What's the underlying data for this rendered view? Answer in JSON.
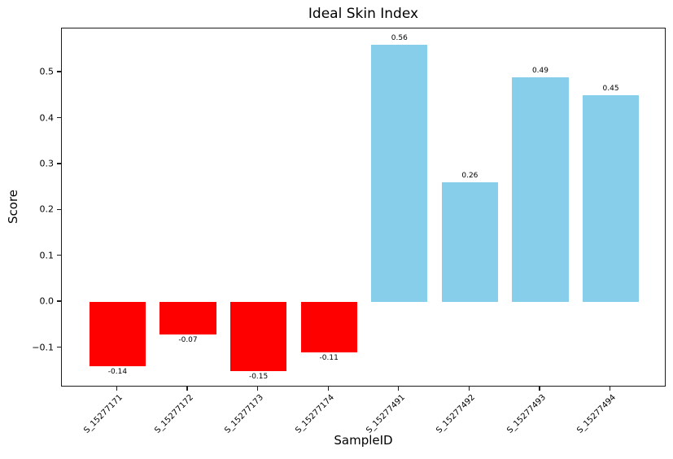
{
  "chart_data": {
    "type": "bar",
    "title": "Ideal Skin Index",
    "xlabel": "SampleID",
    "ylabel": "Score",
    "categories": [
      "S_15277171",
      "S_15277172",
      "S_15277173",
      "S_15277174",
      "S_15277491",
      "S_15277492",
      "S_15277493",
      "S_15277494"
    ],
    "values": [
      -0.14,
      -0.07,
      -0.15,
      -0.11,
      0.56,
      0.26,
      0.49,
      0.45
    ],
    "value_labels": [
      "-0.14",
      "-0.07",
      "-0.15",
      "-0.11",
      "0.56",
      "0.26",
      "0.49",
      "0.45"
    ],
    "yticks": [
      -0.1,
      0.0,
      0.1,
      0.2,
      0.3,
      0.4,
      0.5
    ],
    "ytick_labels": [
      "−0.1",
      "0.0",
      "0.1",
      "0.2",
      "0.3",
      "0.4",
      "0.5"
    ],
    "ylim": [
      -0.186,
      0.596
    ],
    "bar_width_fraction": 0.8,
    "colors": {
      "positive_bar": "#87ceeb",
      "negative_bar": "#ff0000",
      "spine": "#1c1c1c",
      "text": "#000000",
      "background": "#ffffff"
    },
    "grid": false,
    "legend": null,
    "xtick_rotation_deg": 45
  }
}
